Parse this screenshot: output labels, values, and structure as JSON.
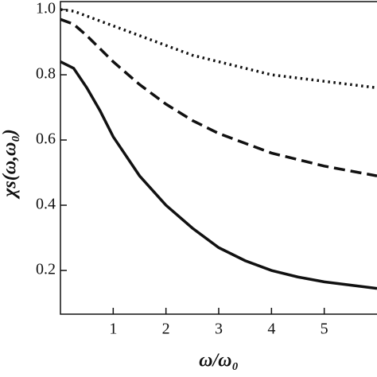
{
  "chart_data": {
    "type": "line",
    "x_label": "ω/ω₀",
    "y_label": "χs(ω,ω₀)",
    "x": [
      0,
      0.25,
      0.5,
      0.75,
      1,
      1.5,
      2,
      2.5,
      3,
      3.5,
      4,
      4.5,
      5,
      5.5,
      6
    ],
    "series": [
      {
        "color": "#111111",
        "dash": "solid",
        "values": [
          0.84,
          0.82,
          0.76,
          0.69,
          0.61,
          0.49,
          0.4,
          0.33,
          0.27,
          0.23,
          0.2,
          0.18,
          0.165,
          0.155,
          0.145
        ]
      },
      {
        "color": "#111111",
        "dash": "dashed",
        "values": [
          0.97,
          0.955,
          0.92,
          0.88,
          0.84,
          0.77,
          0.71,
          0.66,
          0.62,
          0.59,
          0.56,
          0.54,
          0.52,
          0.505,
          0.49
        ]
      },
      {
        "color": "#111111",
        "dash": "dotted",
        "values": [
          1.0,
          0.995,
          0.98,
          0.965,
          0.95,
          0.92,
          0.89,
          0.86,
          0.84,
          0.82,
          0.8,
          0.79,
          0.78,
          0.77,
          0.76
        ]
      }
    ],
    "xlim": [
      0,
      6
    ],
    "ylim": [
      0.066,
      1.0
    ],
    "xticks": [
      1,
      2,
      3,
      4,
      5
    ],
    "yticks": [
      0.2,
      0.4,
      0.6,
      0.8,
      {
        "value": 1.0,
        "label": "1.0"
      }
    ]
  }
}
